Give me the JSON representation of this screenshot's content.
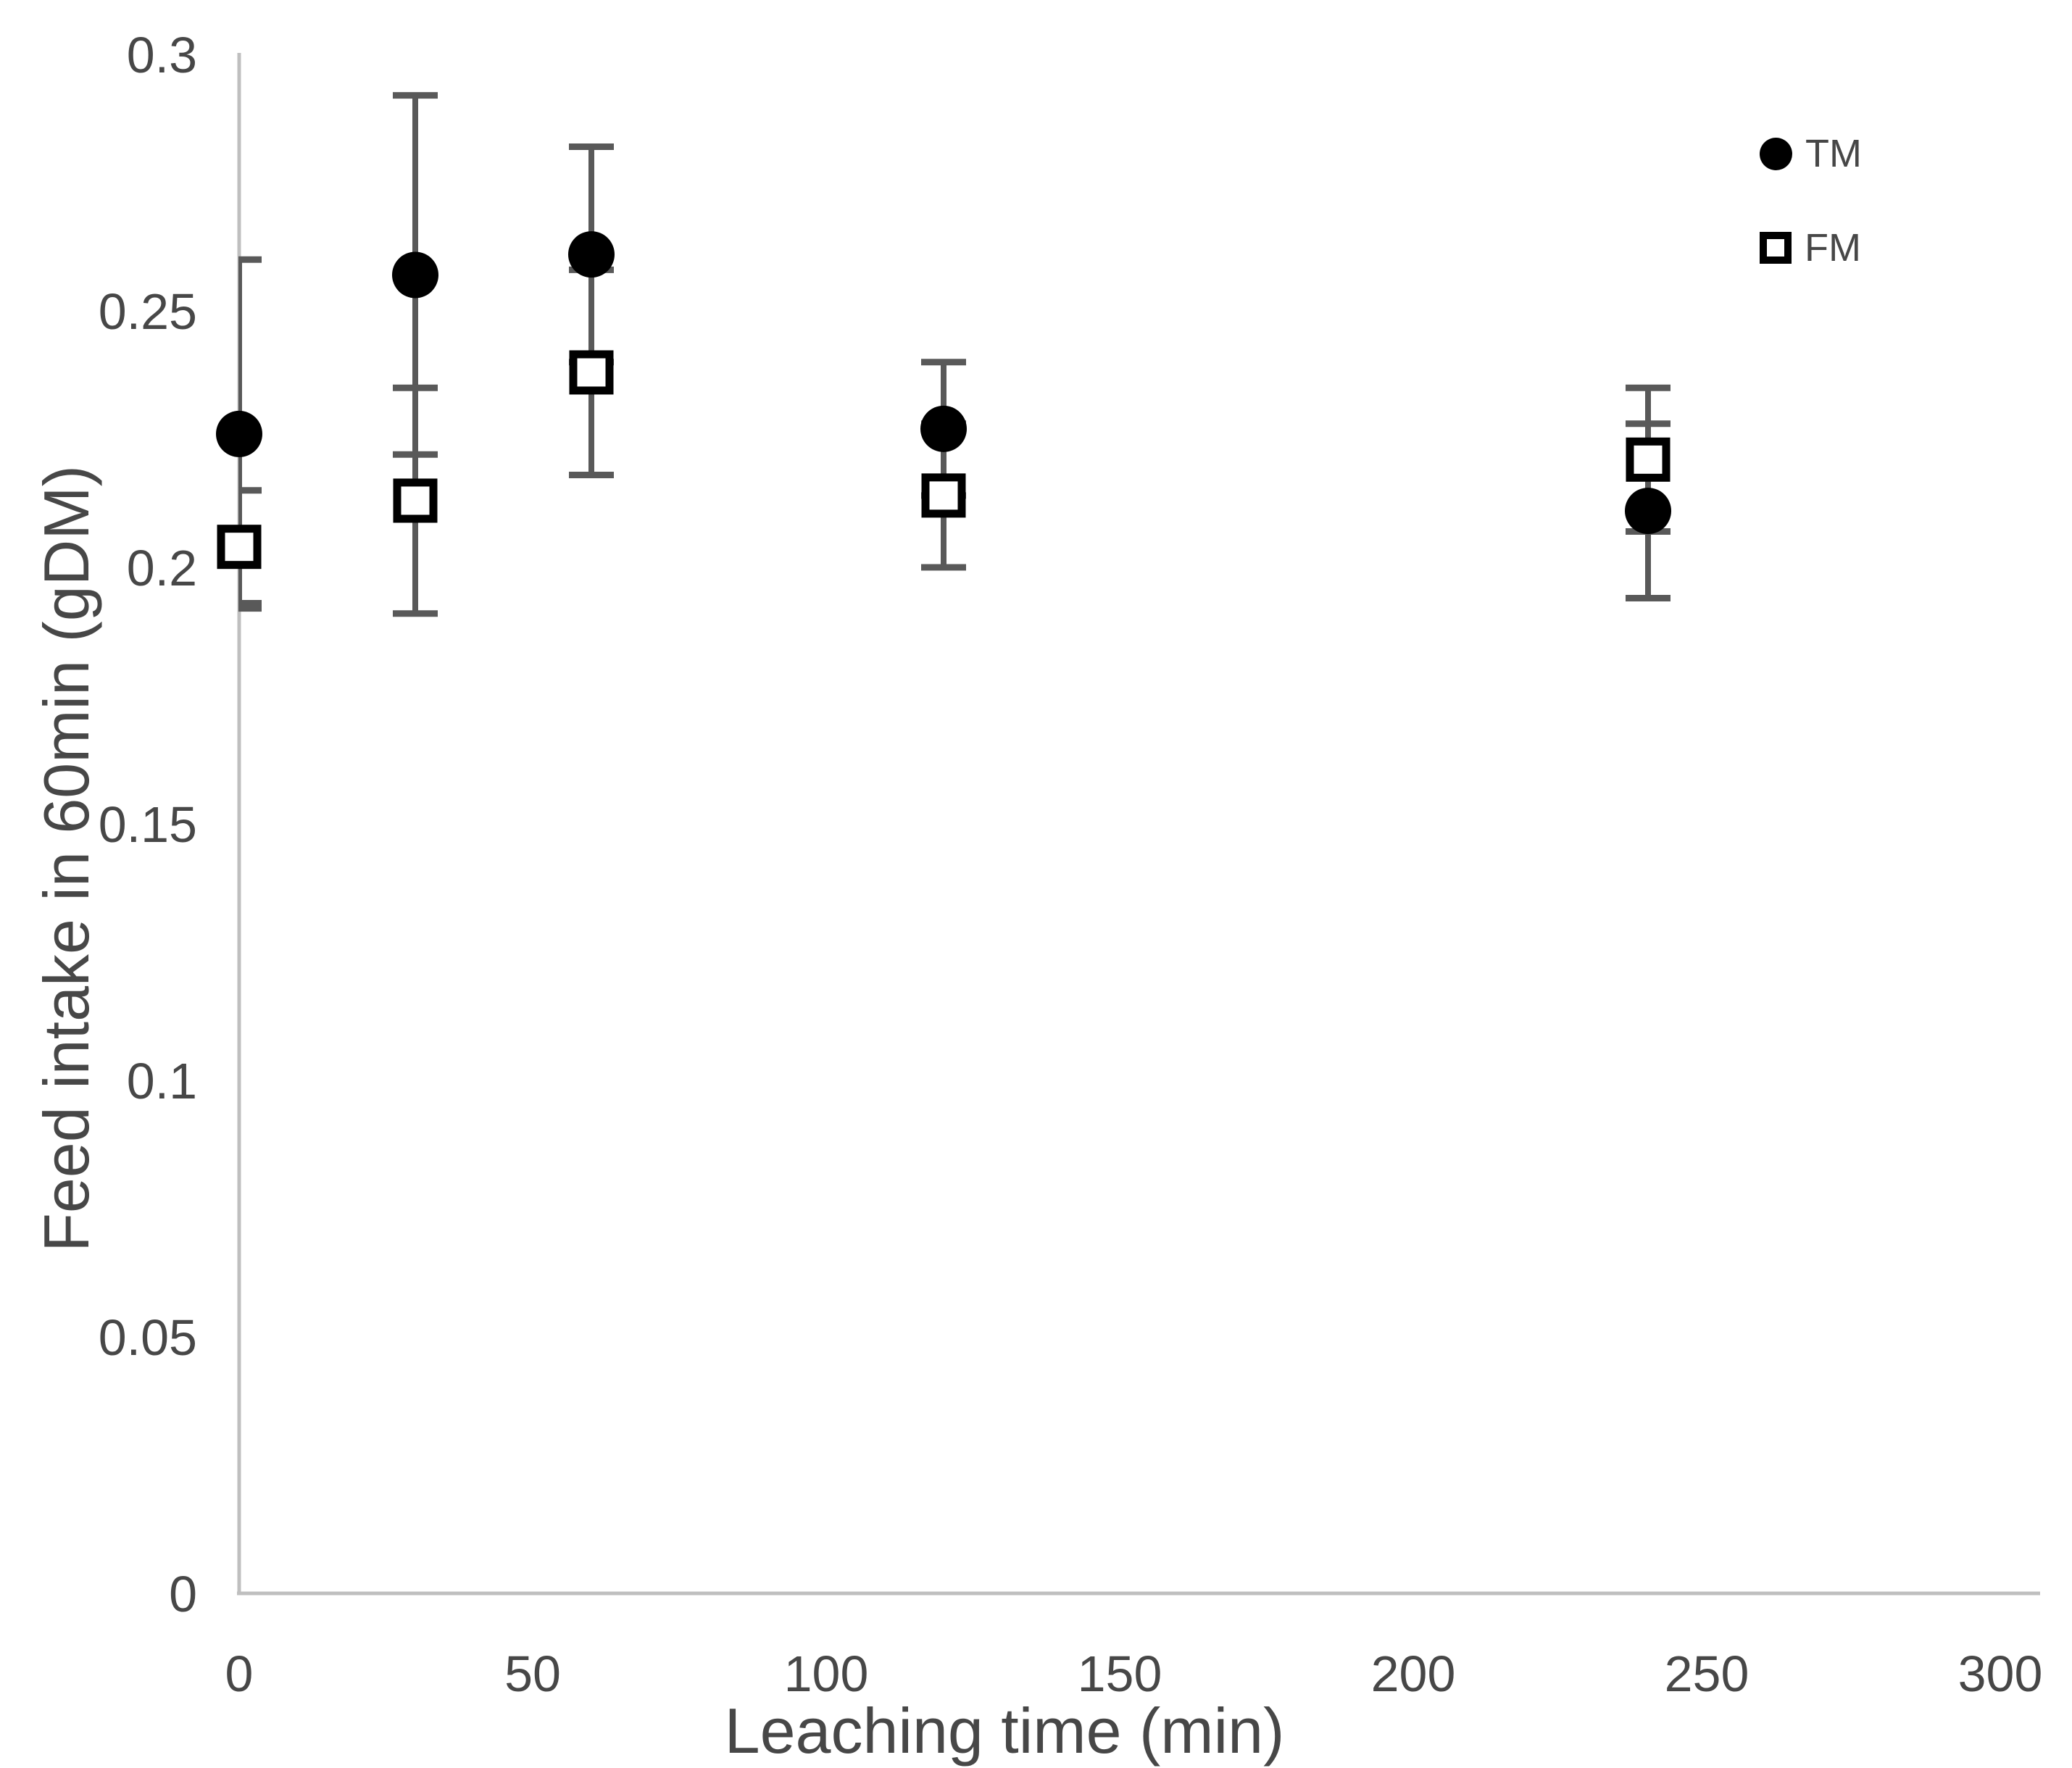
{
  "chart_data": {
    "type": "scatter",
    "title": "",
    "xlabel": "Leaching time (min)",
    "ylabel": "Feed intake in 60min (gDM)",
    "xlim": [
      0,
      300
    ],
    "ylim": [
      0,
      0.3
    ],
    "grid": false,
    "legend_position": "top-right",
    "x_ticks": [
      0,
      50,
      100,
      150,
      200,
      250,
      300
    ],
    "x_tick_labels": [
      "0",
      "50",
      "100",
      "150",
      "200",
      "250",
      "300"
    ],
    "y_ticks": [
      0,
      0.05,
      0.1,
      0.15,
      0.2,
      0.25,
      0.3
    ],
    "y_tick_labels": [
      "0",
      "0.05",
      "0.1",
      "0.15",
      "0.2",
      "0.25",
      "0.3"
    ],
    "x": [
      0,
      30,
      60,
      120,
      240
    ],
    "series": [
      {
        "name": "TM",
        "marker": "filled-circle",
        "color": "#000000",
        "values": [
          0.226,
          0.257,
          0.261,
          0.227,
          0.211
        ],
        "error": [
          0.034,
          0.035,
          0.021,
          0.013,
          0.017
        ]
      },
      {
        "name": "FM",
        "marker": "open-square",
        "color": "#000000",
        "values": [
          0.204,
          0.213,
          0.238,
          0.214,
          0.221
        ],
        "error": [
          0.011,
          0.022,
          0.02,
          0.014,
          0.014
        ]
      }
    ],
    "error_bar_color": "#595959",
    "axis_line_color": "#bfbfbf",
    "tick_label_color": "#474747",
    "axis_title_color": "#474747"
  }
}
